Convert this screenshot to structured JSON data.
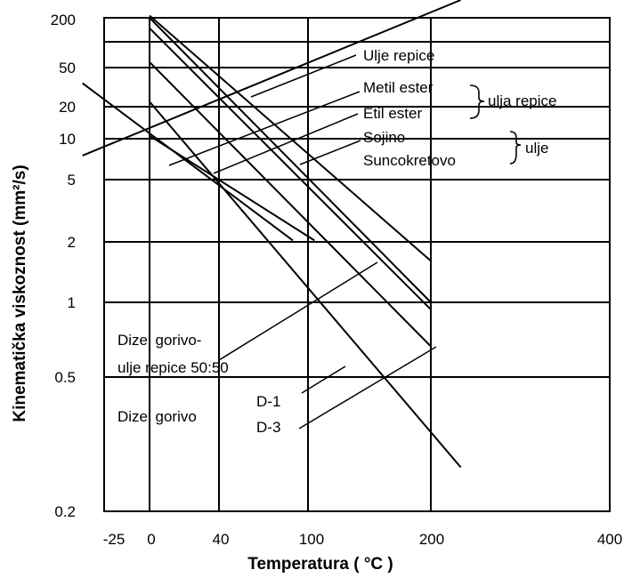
{
  "chart_data": {
    "type": "line",
    "xlabel": "Temperatura ( °C )",
    "ylabel": "Kinematička viskoznost (mm²/s)",
    "x_scale": "reciprocal",
    "y_scale": "log-log",
    "x_ticks": [
      "-25",
      "0",
      "40",
      "100",
      "200",
      "400"
    ],
    "y_ticks": [
      "200",
      "50",
      "20",
      "10",
      "5",
      "2",
      "1",
      "0.5",
      "0.2"
    ],
    "grid": true,
    "series": [
      {
        "name": "Ulje repice",
        "points": [
          [
            0,
            220
          ],
          [
            200,
            1.4
          ]
        ]
      },
      {
        "name": "Metil ester ulja repice",
        "points": [
          [
            0,
            40
          ],
          [
            200,
            0.75
          ]
        ]
      },
      {
        "name": "Etil ester ulja repice",
        "points": [
          [
            -25,
            22
          ],
          [
            75,
            1.7
          ]
        ]
      },
      {
        "name": "Sojino ulje",
        "points": [
          [
            0,
            200
          ],
          [
            200,
            1.0
          ]
        ]
      },
      {
        "name": "Suncokretovo ulje",
        "points": [
          [
            0,
            130
          ],
          [
            200,
            0.95
          ]
        ]
      },
      {
        "name": "Dizel gorivo-ulje repice 50:50",
        "points": [
          [
            0,
            14
          ],
          [
            240,
            0.45
          ]
        ]
      },
      {
        "name": "Dizel gorivo D-1",
        "points": [
          [
            -25,
            5
          ],
          [
            240,
            0.27
          ]
        ]
      },
      {
        "name": "Dizel gorivo D-3",
        "points": [
          [
            0,
            7
          ],
          [
            90,
            1.7
          ]
        ]
      }
    ],
    "annotations": {
      "ulje_repice": "Ulje repice",
      "metil_ester": "Metil ester",
      "etil_ester": "Etil ester",
      "ulja_repice": "ulja repice",
      "sojino": "Sojino",
      "suncokretovo": "Suncokretovo",
      "ulje": "ulje",
      "dizel_mix_1": "Dizel gorivo-",
      "dizel_mix_2": "ulje repice 50:50",
      "dizel_gorivo": "Dizel gorivo",
      "d1": "D-1",
      "d3": "D-3"
    }
  }
}
